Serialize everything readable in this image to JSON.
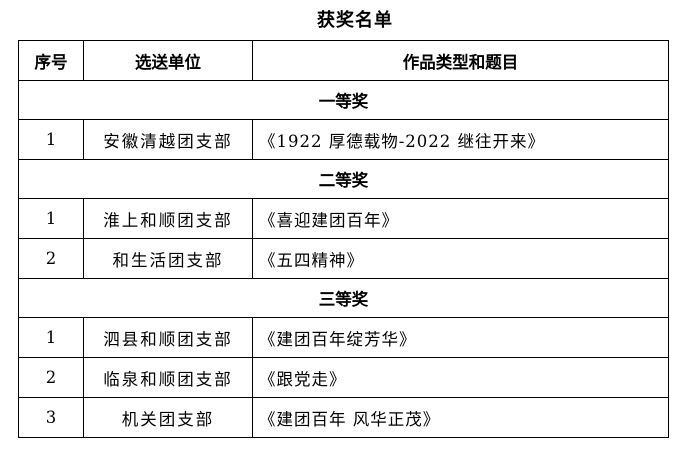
{
  "title": "获奖名单",
  "headers": [
    "序号",
    "选送单位",
    "作品类型和题目"
  ],
  "sections": [
    {
      "name": "一等奖",
      "rows": [
        {
          "no": "1",
          "unit": "安徽清越团支部",
          "work": "《1922 厚德载物-2022 继往开来》"
        }
      ]
    },
    {
      "name": "二等奖",
      "rows": [
        {
          "no": "1",
          "unit": "淮上和顺团支部",
          "work": "《喜迎建团百年》"
        },
        {
          "no": "2",
          "unit": "和生活团支部",
          "work": "《五四精神》"
        }
      ]
    },
    {
      "name": "三等奖",
      "rows": [
        {
          "no": "1",
          "unit": "泗县和顺团支部",
          "work": "《建团百年绽芳华》"
        },
        {
          "no": "2",
          "unit": "临泉和顺团支部",
          "work": "《跟党走》"
        },
        {
          "no": "3",
          "unit": "机关团支部",
          "work": "《建团百年 风华正茂》"
        }
      ]
    }
  ]
}
